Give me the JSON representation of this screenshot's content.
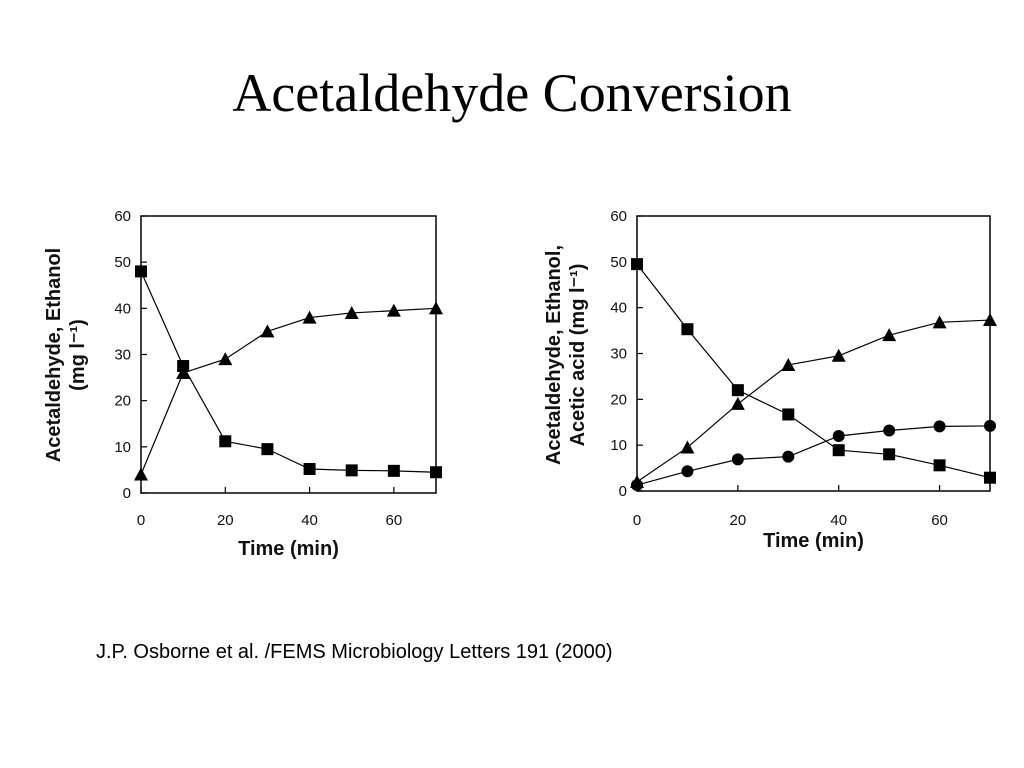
{
  "slide": {
    "title": "Acetaldehyde Conversion",
    "citation": "J.P. Osborne et al. /FEMS Microbiology Letters 191 (2000)"
  },
  "chart_data": [
    {
      "type": "line",
      "xlabel": "Time (min)",
      "ylabel_lines": [
        "Acetaldehyde, Ethanol",
        "(mg l⁻¹)"
      ],
      "xlim": [
        0,
        70
      ],
      "ylim": [
        0,
        60
      ],
      "xticks": [
        0,
        20,
        40,
        60
      ],
      "yticks": [
        0,
        10,
        20,
        30,
        40,
        50,
        60
      ],
      "grid": false,
      "series": [
        {
          "marker": "square",
          "x": [
            0,
            10,
            20,
            30,
            40,
            50,
            60,
            70
          ],
          "y": [
            48,
            27.5,
            11.2,
            9.5,
            5.2,
            4.9,
            4.8,
            4.5
          ]
        },
        {
          "marker": "triangle",
          "x": [
            0,
            10,
            20,
            30,
            40,
            50,
            60,
            70
          ],
          "y": [
            4,
            26,
            29,
            35,
            38,
            39,
            39.5,
            40
          ]
        }
      ]
    },
    {
      "type": "line",
      "xlabel": "Time (min)",
      "ylabel_lines": [
        "Acetaldehyde, Ethanol,",
        "Acetic acid (mg l⁻¹)"
      ],
      "xlim": [
        0,
        70
      ],
      "ylim": [
        0,
        60
      ],
      "xticks": [
        0,
        20,
        40,
        60
      ],
      "yticks": [
        0,
        10,
        20,
        30,
        40,
        50,
        60
      ],
      "grid": false,
      "series": [
        {
          "marker": "square",
          "x": [
            0,
            10,
            20,
            30,
            40,
            50,
            60,
            70
          ],
          "y": [
            49.5,
            35.3,
            22,
            16.7,
            8.9,
            8,
            5.6,
            2.9
          ]
        },
        {
          "marker": "triangle",
          "x": [
            0,
            10,
            20,
            30,
            40,
            50,
            60,
            70
          ],
          "y": [
            2,
            9.5,
            19,
            27.5,
            29.5,
            34,
            36.8,
            37.3
          ]
        },
        {
          "marker": "circle",
          "x": [
            0,
            10,
            20,
            30,
            40,
            50,
            60,
            70
          ],
          "y": [
            1.3,
            4.3,
            6.9,
            7.5,
            12,
            13.2,
            14.1,
            14.2
          ]
        }
      ]
    }
  ]
}
